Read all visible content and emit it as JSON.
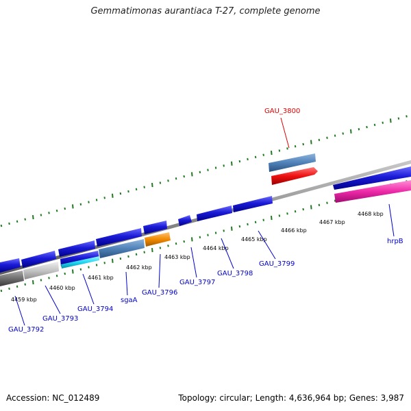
{
  "title": "Gemmatimonas aurantiaca T-27, complete genome",
  "footer": {
    "accession": "Accession: NC_012489",
    "topology": "Topology: circular; Length: 4,636,964 bp; Genes: 3,987"
  },
  "colors": {
    "backbone": "#8a8a8a",
    "ticks": "#1f7a1f",
    "gene_label_default": "#0000cc",
    "gene_label_highlight": "#dd0000",
    "blue": "#1a1ad6",
    "steelblue": "#4f81b8",
    "red": "#ee1111",
    "orange": "#f08a00",
    "magenta": "#ee2aa8",
    "cyan": "#20d8f0",
    "gray": "#777777",
    "lightgray": "#c4c4c4"
  },
  "kbp_labels": [
    "4459 kbp",
    "4460 kbp",
    "4461 kbp",
    "4462 kbp",
    "4463 kbp",
    "4464 kbp",
    "4465 kbp",
    "4466 kbp",
    "4467 kbp",
    "4468 kbp"
  ],
  "gene_labels": [
    {
      "name": "GAU_3792",
      "highlight": false
    },
    {
      "name": "GAU_3793",
      "highlight": false
    },
    {
      "name": "GAU_3794",
      "highlight": false
    },
    {
      "name": "sgaA",
      "highlight": false
    },
    {
      "name": "GAU_3796",
      "highlight": false
    },
    {
      "name": "GAU_3797",
      "highlight": false
    },
    {
      "name": "GAU_3798",
      "highlight": false
    },
    {
      "name": "GAU_3799",
      "highlight": false
    },
    {
      "name": "GAU_3800",
      "highlight": true
    },
    {
      "name": "hrpB",
      "highlight": false
    }
  ]
}
